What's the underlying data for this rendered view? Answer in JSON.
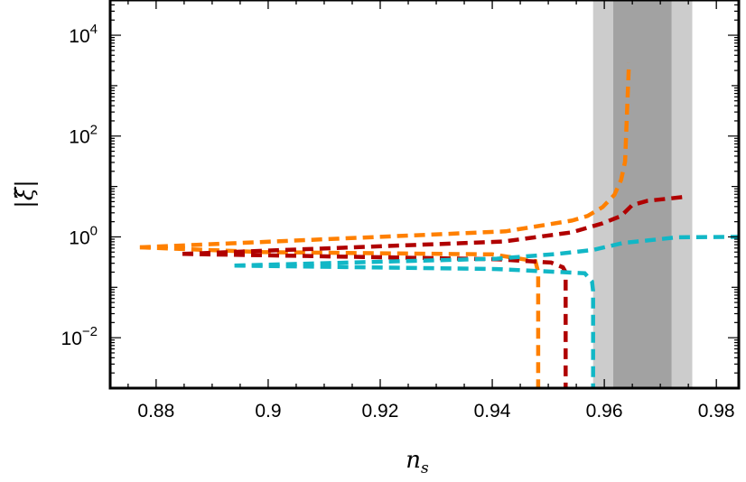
{
  "chart_data": {
    "type": "line",
    "title": "",
    "xlabel": "n_s",
    "ylabel": "|ξ̃|",
    "xlim": [
      0.8718,
      0.984
    ],
    "ylim": [
      0.001,
      50000
    ],
    "yscale": "log",
    "grid": false,
    "x_ticks": [
      "0.88",
      "0.9",
      "0.92",
      "0.94",
      "0.96",
      "0.98"
    ],
    "x_tick_values": [
      0.88,
      0.9,
      0.92,
      0.94,
      0.96,
      0.98
    ],
    "y_ticks": [
      {
        "base": "10",
        "exp": "4",
        "value": 10000
      },
      {
        "base": "10",
        "exp": "2",
        "value": 100
      },
      {
        "base": "10",
        "exp": "0",
        "value": 1
      },
      {
        "base": "10",
        "exp": "−2",
        "value": 0.01
      }
    ],
    "bands": [
      {
        "x": [
          0.958,
          0.9757
        ],
        "color": "#cccccc"
      },
      {
        "x": [
          0.9616,
          0.972
        ],
        "color": "#a2a2a2"
      }
    ],
    "series": [
      {
        "color": "#ff8000",
        "branch": "upper",
        "points": [
          [
            0.8771,
            0.62
          ],
          [
            0.9424,
            1.29
          ],
          [
            0.9542,
            2.1
          ],
          [
            0.957,
            2.6
          ],
          [
            0.9597,
            3.9
          ],
          [
            0.9618,
            6.8
          ],
          [
            0.963,
            13.5
          ],
          [
            0.9637,
            31
          ],
          [
            0.9644,
            2800
          ]
        ]
      },
      {
        "color": "#ff8000",
        "branch": "lower",
        "points": [
          [
            0.8771,
            0.62
          ],
          [
            0.899,
            0.5
          ],
          [
            0.94,
            0.45
          ],
          [
            0.9477,
            0.33
          ],
          [
            0.9482,
            0.2
          ],
          [
            0.9482,
            0.001
          ]
        ]
      },
      {
        "color": "#b00000",
        "branch": "upper",
        "points": [
          [
            0.8847,
            0.46
          ],
          [
            0.942,
            0.81
          ],
          [
            0.9542,
            1.23
          ],
          [
            0.9597,
            1.86
          ],
          [
            0.963,
            2.6
          ],
          [
            0.965,
            4.3
          ],
          [
            0.9677,
            5.2
          ],
          [
            0.9742,
            6.2
          ]
        ]
      },
      {
        "color": "#b00000",
        "branch": "lower",
        "points": [
          [
            0.8847,
            0.46
          ],
          [
            0.9408,
            0.36
          ],
          [
            0.9505,
            0.31
          ],
          [
            0.9526,
            0.25
          ],
          [
            0.9531,
            0.2
          ],
          [
            0.9531,
            0.001
          ]
        ]
      },
      {
        "color": "#12b7c6",
        "branch": "upper",
        "points": [
          [
            0.894,
            0.27
          ],
          [
            0.9408,
            0.37
          ],
          [
            0.9516,
            0.46
          ],
          [
            0.958,
            0.55
          ],
          [
            0.9634,
            0.76
          ],
          [
            0.9677,
            0.85
          ],
          [
            0.973,
            0.98
          ],
          [
            0.984,
            1.0
          ]
        ]
      },
      {
        "color": "#12b7c6",
        "branch": "lower",
        "points": [
          [
            0.894,
            0.27
          ],
          [
            0.9408,
            0.23
          ],
          [
            0.9565,
            0.19
          ],
          [
            0.9578,
            0.13
          ],
          [
            0.958,
            0.085
          ],
          [
            0.958,
            0.001
          ]
        ]
      }
    ]
  }
}
